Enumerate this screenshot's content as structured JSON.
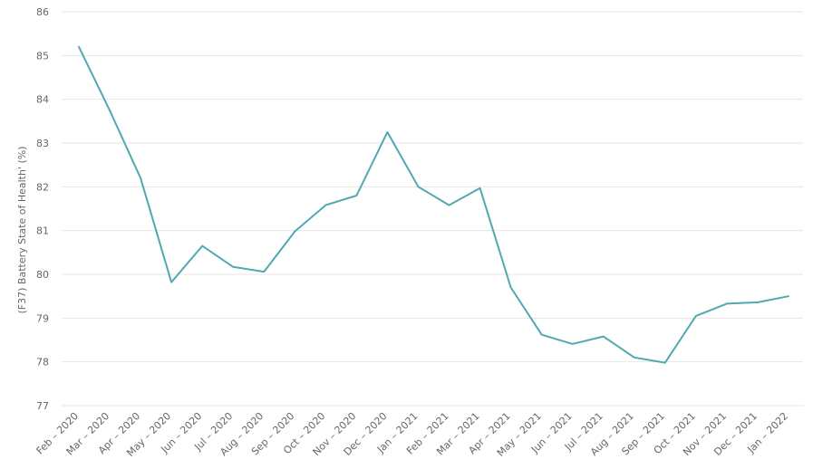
{
  "chart_data": {
    "type": "line",
    "title": "",
    "xlabel": "",
    "ylabel": "(F37) Battery State of Health' (%)",
    "ylim": [
      77,
      86
    ],
    "yticks": [
      "77",
      "78",
      "79",
      "80",
      "81",
      "82",
      "83",
      "84",
      "85",
      "86"
    ],
    "grid": true,
    "legend": "none",
    "series_color": "#4fa9b1",
    "categories": [
      "Feb – 2020",
      "Mar – 2020",
      "Apr – 2020",
      "May – 2020",
      "Jun – 2020",
      "Jul – 2020",
      "Aug – 2020",
      "Sep – 2020",
      "Oct – 2020",
      "Nov – 2020",
      "Dec – 2020",
      "Jan – 2021",
      "Feb – 2021",
      "Mar – 2021",
      "Apr – 2021",
      "May – 2021",
      "Jun – 2021",
      "Jul – 2021",
      "Aug – 2021",
      "Sep – 2021",
      "Oct – 2021",
      "Nov – 2021",
      "Dec – 2021",
      "Jan – 2022"
    ],
    "series": [
      {
        "values": [
          85.2,
          83.75,
          82.2,
          79.82,
          80.65,
          80.17,
          80.06,
          80.98,
          81.58,
          81.8,
          83.25,
          82.0,
          81.58,
          81.97,
          79.7,
          78.62,
          78.41,
          78.58,
          78.1,
          77.98,
          79.05,
          79.33,
          79.36,
          79.5
        ]
      }
    ]
  }
}
